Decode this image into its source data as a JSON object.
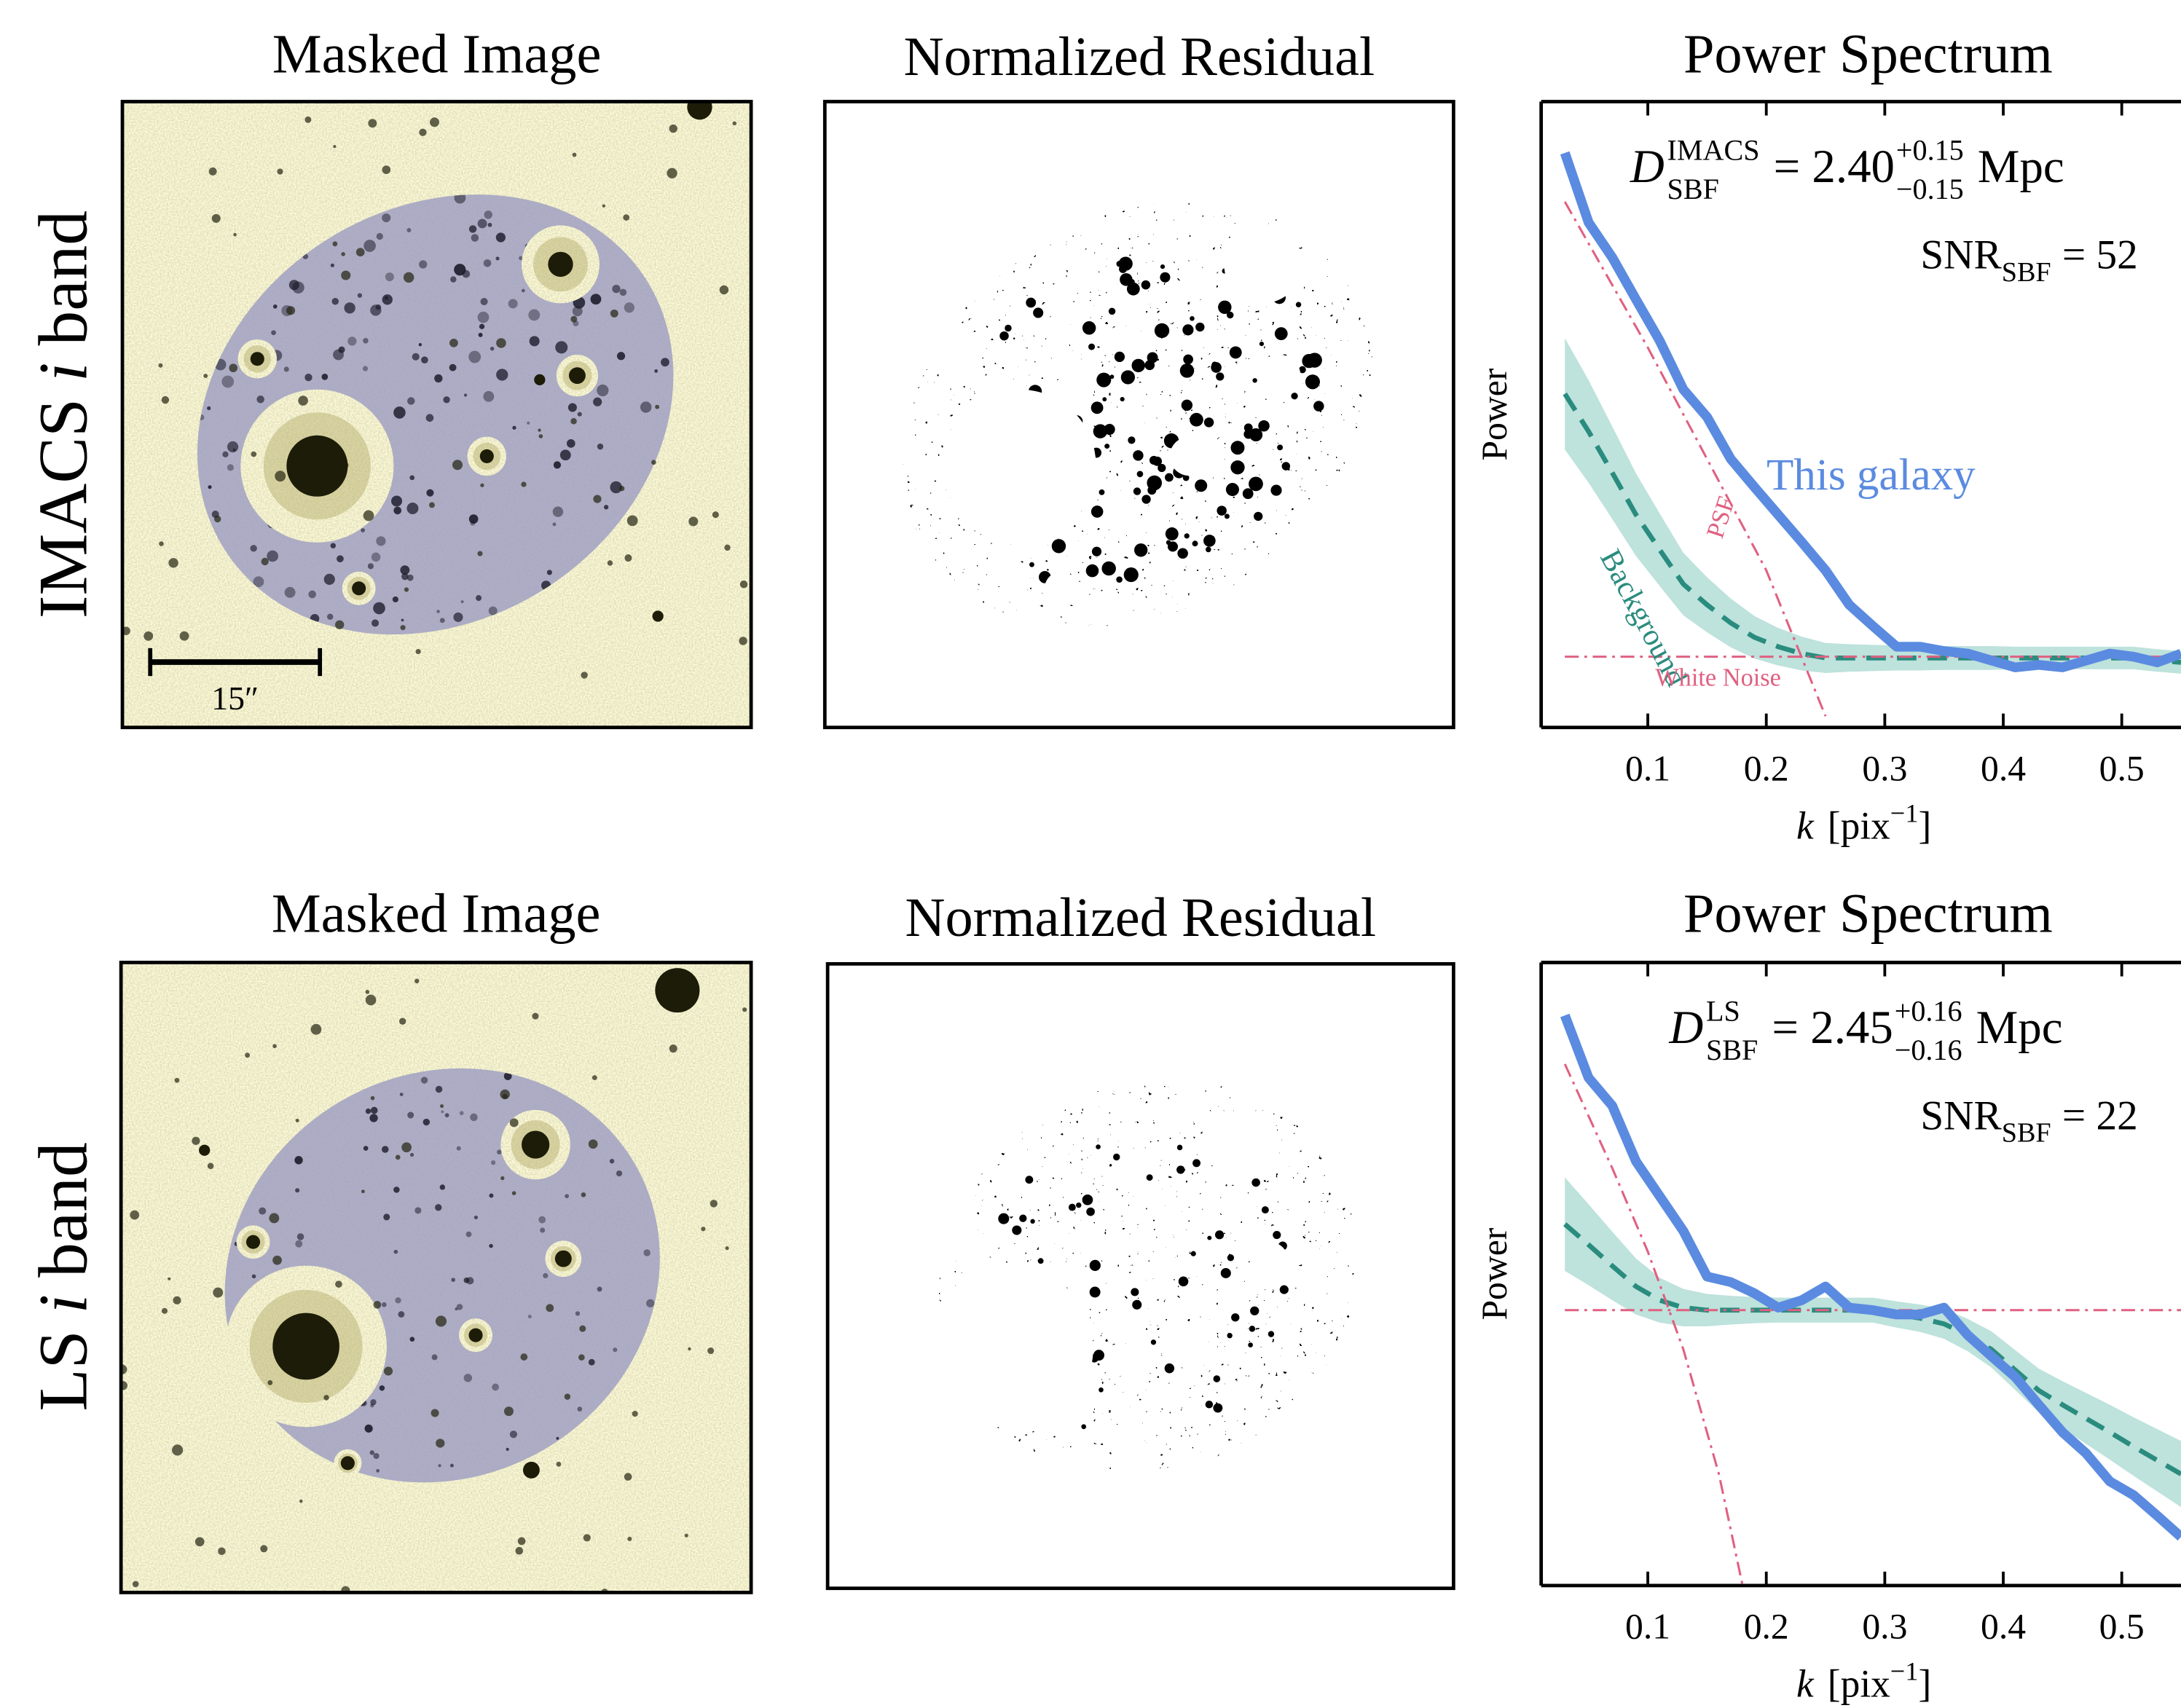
{
  "row_labels": [
    {
      "pre": "IMACS",
      "var": "i",
      "post": "band"
    },
    {
      "pre": "LS",
      "var": "i",
      "post": "band"
    }
  ],
  "chart_data": [
    {
      "type": "image",
      "title": "Masked Image",
      "scale_bar": "15″"
    },
    {
      "type": "residual",
      "title": "Normalized Residual"
    },
    {
      "type": "line",
      "title": "Power Spectrum",
      "ylabel": "Power",
      "xlabel": {
        "var": "k",
        "unit": "[pix",
        "exp": "−1",
        "end": "]"
      },
      "xlim": [
        0.01,
        0.55
      ],
      "ylim": [
        0,
        100
      ],
      "xticks": [
        0.1,
        0.2,
        0.3,
        0.4,
        0.5
      ],
      "annotations": {
        "distance": {
          "symbol": "D",
          "sup": "IMACS",
          "sub": "SBF",
          "eq": "= 2.40",
          "plus": "+0.15",
          "minus": "−0.15",
          "unit": "Mpc"
        },
        "snr": {
          "text": "SNR",
          "sub": "SBF",
          "eq": "= 52"
        }
      },
      "series": [
        {
          "name": "This galaxy",
          "color": "#5b8be0",
          "style": "solid",
          "x": [
            0.03,
            0.05,
            0.07,
            0.09,
            0.11,
            0.13,
            0.15,
            0.17,
            0.19,
            0.21,
            0.23,
            0.25,
            0.27,
            0.29,
            0.31,
            0.33,
            0.35,
            0.37,
            0.39,
            0.41,
            0.43,
            0.45,
            0.47,
            0.49,
            0.51,
            0.53,
            0.55
          ],
          "values": [
            91.8,
            80.7,
            75.1,
            68.4,
            61.8,
            54,
            49.6,
            42.9,
            38.4,
            34,
            29.6,
            25.1,
            19.6,
            16.2,
            12.9,
            12.9,
            12.2,
            11.8,
            10.7,
            9.6,
            10,
            9.6,
            10.7,
            11.8,
            11.3,
            10.4,
            11.8
          ]
        },
        {
          "name": "Background",
          "color": "#2a8c7e",
          "band_color": "#a8d8d0",
          "style": "dashed",
          "x": [
            0.03,
            0.05,
            0.07,
            0.09,
            0.11,
            0.13,
            0.15,
            0.17,
            0.19,
            0.21,
            0.23,
            0.25,
            0.27,
            0.29,
            0.31,
            0.33,
            0.35,
            0.37,
            0.39,
            0.41,
            0.43,
            0.45,
            0.47,
            0.49,
            0.51,
            0.53,
            0.55
          ],
          "values": [
            53.3,
            47.3,
            40.7,
            34,
            28.4,
            22.9,
            19.6,
            16.7,
            14.4,
            12.9,
            11.8,
            11.1,
            11.1,
            11.1,
            11.1,
            11.1,
            11.1,
            11.1,
            11.1,
            11.1,
            11.1,
            11.1,
            11.1,
            11.1,
            11.1,
            10.7,
            10.4
          ],
          "errors": [
            8.9,
            8.2,
            7.4,
            6.6,
            5.8,
            5,
            4.4,
            3.9,
            3.4,
            3,
            2.7,
            2.4,
            2.2,
            2.1,
            2,
            2,
            1.9,
            1.9,
            1.9,
            1.8,
            1.8,
            1.8,
            1.8,
            1.8,
            1.8,
            1.8,
            1.8
          ]
        },
        {
          "name": "PSF",
          "color": "#e06080",
          "style": "dashdot",
          "x": [
            0.03,
            0.1,
            0.15,
            0.2,
            0.25
          ],
          "values": [
            84,
            60.7,
            42.9,
            25.1,
            1.8
          ]
        },
        {
          "name": "White Noise",
          "color": "#e06080",
          "style": "dashdot",
          "x": [
            0.03,
            0.55
          ],
          "values": [
            11.3,
            11.3
          ]
        }
      ]
    },
    {
      "type": "image",
      "title": "Masked Image"
    },
    {
      "type": "residual",
      "title": "Normalized Residual"
    },
    {
      "type": "line",
      "title": "Power Spectrum",
      "ylabel": "Power",
      "xlabel": {
        "var": "k",
        "unit": "[pix",
        "exp": "−1",
        "end": "]"
      },
      "xlim": [
        0.01,
        0.55
      ],
      "ylim": [
        0,
        100
      ],
      "xticks": [
        0.1,
        0.2,
        0.3,
        0.4,
        0.5
      ],
      "annotations": {
        "distance": {
          "symbol": "D",
          "sup": "LS",
          "sub": "SBF",
          "eq": "= 2.45",
          "plus": "+0.16",
          "minus": "−0.16",
          "unit": "Mpc"
        },
        "snr": {
          "text": "SNR",
          "sub": "SBF",
          "eq": "= 22"
        }
      },
      "series": [
        {
          "color": "#5b8be0",
          "style": "solid",
          "x": [
            0.03,
            0.05,
            0.07,
            0.09,
            0.11,
            0.13,
            0.15,
            0.17,
            0.19,
            0.21,
            0.23,
            0.25,
            0.27,
            0.29,
            0.31,
            0.33,
            0.35,
            0.37,
            0.39,
            0.41,
            0.43,
            0.45,
            0.47,
            0.49,
            0.51,
            0.53,
            0.55
          ],
          "values": [
            91.5,
            81.5,
            77,
            68.1,
            62.5,
            56.9,
            49.6,
            48.7,
            46.9,
            44.6,
            45.8,
            48,
            44.6,
            44.2,
            43.5,
            43.5,
            44.6,
            40.2,
            36.8,
            33.5,
            29,
            24.6,
            21.2,
            16.7,
            14.5,
            11.2,
            7.8
          ]
        },
        {
          "color": "#2a8c7e",
          "band_color": "#a8d8d0",
          "style": "dashed",
          "x": [
            0.03,
            0.05,
            0.07,
            0.09,
            0.11,
            0.13,
            0.15,
            0.17,
            0.19,
            0.21,
            0.23,
            0.25,
            0.27,
            0.29,
            0.31,
            0.33,
            0.35,
            0.37,
            0.39,
            0.41,
            0.43,
            0.45,
            0.47,
            0.49,
            0.51,
            0.53,
            0.55
          ],
          "values": [
            58,
            54.7,
            51.3,
            48,
            45.8,
            44.6,
            44.2,
            44.2,
            44.2,
            44.2,
            44.2,
            44.2,
            44.2,
            44.2,
            43.5,
            42.9,
            42,
            40.2,
            37.9,
            34.6,
            31.3,
            29,
            26.8,
            24.6,
            22.3,
            20.1,
            17.9
          ],
          "errors": [
            7.5,
            6.5,
            5.5,
            4.5,
            3.6,
            3,
            2.6,
            2.3,
            2.1,
            2,
            2,
            2,
            2,
            2,
            2.1,
            2.2,
            2.4,
            2.6,
            2.9,
            3.2,
            3.5,
            3.8,
            4.1,
            4.4,
            4.7,
            5,
            5.3
          ]
        },
        {
          "color": "#e06080",
          "style": "dashdot",
          "x": [
            0.03,
            0.07,
            0.1,
            0.13,
            0.16,
            0.18
          ],
          "values": [
            83.7,
            67,
            53.6,
            37.9,
            17.9,
            0
          ]
        },
        {
          "color": "#e06080",
          "style": "dashdot",
          "x": [
            0.03,
            0.55
          ],
          "values": [
            44.2,
            44.2
          ]
        }
      ]
    }
  ]
}
